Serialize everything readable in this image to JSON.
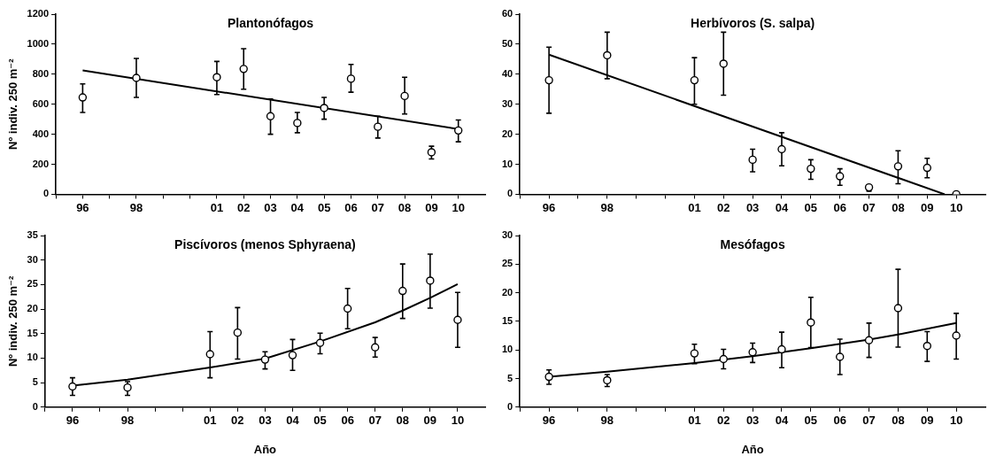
{
  "chart_data": [
    {
      "type": "scatter",
      "title": "Plantonófagos",
      "ylabel": "Nº indiv. 250 m⁻²",
      "marker": "circle",
      "grid": false,
      "legend": false,
      "x": [
        1996,
        1998,
        2001,
        2002,
        2003,
        2004,
        2005,
        2006,
        2007,
        2008,
        2009,
        2010
      ],
      "xlim": [
        1995,
        2011
      ],
      "xticks": [
        {
          "value": 1995,
          "label": null
        },
        {
          "value": 1996,
          "label": "96"
        },
        {
          "value": 1997,
          "label": null
        },
        {
          "value": 1998,
          "label": "98"
        },
        {
          "value": 1999,
          "label": null
        },
        {
          "value": 2000,
          "label": null
        },
        {
          "value": 2001,
          "label": "01"
        },
        {
          "value": 2002,
          "label": "02"
        },
        {
          "value": 2003,
          "label": "03"
        },
        {
          "value": 2004,
          "label": "04"
        },
        {
          "value": 2005,
          "label": "05"
        },
        {
          "value": 2006,
          "label": "06"
        },
        {
          "value": 2007,
          "label": "07"
        },
        {
          "value": 2008,
          "label": "08"
        },
        {
          "value": 2009,
          "label": "09"
        },
        {
          "value": 2010,
          "label": "10"
        }
      ],
      "ylim": [
        0,
        1200
      ],
      "yticks": [
        0,
        200,
        400,
        600,
        800,
        1000,
        1200
      ],
      "series": [
        {
          "color": "#000000",
          "values": [
            645,
            775,
            780,
            835,
            520,
            475,
            575,
            770,
            450,
            655,
            280,
            425
          ],
          "errors": [
            [
              545,
              735
            ],
            [
              645,
              905
            ],
            [
              665,
              885
            ],
            [
              700,
              970
            ],
            [
              400,
              635
            ],
            [
              410,
              545
            ],
            [
              500,
              645
            ],
            [
              680,
              865
            ],
            [
              375,
              520
            ],
            [
              535,
              780
            ],
            [
              235,
              320
            ],
            [
              350,
              495
            ]
          ]
        },
        {
          "type": "line",
          "color": "#000000",
          "marker": "none",
          "x": [
            1996,
            2010
          ],
          "values": [
            825,
            435
          ]
        }
      ]
    },
    {
      "type": "scatter",
      "title": "Herbívoros (S. salpa)",
      "marker": "circle",
      "grid": false,
      "legend": false,
      "x": [
        1996,
        1998,
        2001,
        2002,
        2003,
        2004,
        2005,
        2006,
        2007,
        2008,
        2009,
        2010
      ],
      "xlim": [
        1995,
        2011
      ],
      "xticks": [
        {
          "value": 1995,
          "label": null
        },
        {
          "value": 1996,
          "label": "96"
        },
        {
          "value": 1997,
          "label": null
        },
        {
          "value": 1998,
          "label": "98"
        },
        {
          "value": 1999,
          "label": null
        },
        {
          "value": 2000,
          "label": null
        },
        {
          "value": 2001,
          "label": "01"
        },
        {
          "value": 2002,
          "label": "02"
        },
        {
          "value": 2003,
          "label": "03"
        },
        {
          "value": 2004,
          "label": "04"
        },
        {
          "value": 2005,
          "label": "05"
        },
        {
          "value": 2006,
          "label": "06"
        },
        {
          "value": 2007,
          "label": "07"
        },
        {
          "value": 2008,
          "label": "08"
        },
        {
          "value": 2009,
          "label": "09"
        },
        {
          "value": 2010,
          "label": "10"
        }
      ],
      "ylim": [
        0,
        60
      ],
      "yticks": [
        0,
        10,
        20,
        30,
        40,
        50,
        60
      ],
      "series": [
        {
          "color": "#000000",
          "values": [
            38,
            46.3,
            38,
            43.5,
            11.5,
            15,
            8.5,
            6,
            2.3,
            9.3,
            8.8,
            0
          ],
          "errors": [
            [
              27,
              49
            ],
            [
              38.5,
              54
            ],
            [
              30,
              45.5
            ],
            [
              33,
              54
            ],
            [
              7.5,
              15
            ],
            [
              9.5,
              20.5
            ],
            [
              5,
              11.5
            ],
            [
              3,
              8.5
            ],
            [
              1,
              3
            ],
            [
              3.5,
              14.5
            ],
            [
              5.5,
              12
            ],
            null
          ]
        },
        {
          "type": "line",
          "color": "#000000",
          "marker": "none",
          "x": [
            1996,
            2009.6
          ],
          "values": [
            46.5,
            0
          ]
        }
      ]
    },
    {
      "type": "scatter",
      "title": "Piscívoros (menos Sphyraena)",
      "ylabel": "Nº indiv. 250 m⁻²",
      "xlabel": "Año",
      "marker": "circle",
      "grid": false,
      "legend": false,
      "x": [
        1996,
        1998,
        2001,
        2002,
        2003,
        2004,
        2005,
        2006,
        2007,
        2008,
        2009,
        2010
      ],
      "xlim": [
        1995,
        2011
      ],
      "xticks": [
        {
          "value": 1995,
          "label": null
        },
        {
          "value": 1996,
          "label": "96"
        },
        {
          "value": 1997,
          "label": null
        },
        {
          "value": 1998,
          "label": "98"
        },
        {
          "value": 1999,
          "label": null
        },
        {
          "value": 2000,
          "label": null
        },
        {
          "value": 2001,
          "label": "01"
        },
        {
          "value": 2002,
          "label": "02"
        },
        {
          "value": 2003,
          "label": "03"
        },
        {
          "value": 2004,
          "label": "04"
        },
        {
          "value": 2005,
          "label": "05"
        },
        {
          "value": 2006,
          "label": "06"
        },
        {
          "value": 2007,
          "label": "07"
        },
        {
          "value": 2008,
          "label": "08"
        },
        {
          "value": 2009,
          "label": "09"
        },
        {
          "value": 2010,
          "label": "10"
        }
      ],
      "ylim": [
        0,
        35
      ],
      "yticks": [
        0,
        5,
        10,
        15,
        20,
        25,
        30,
        35
      ],
      "series": [
        {
          "color": "#000000",
          "values": [
            4.2,
            4,
            10.8,
            15.2,
            9.7,
            10.6,
            13.1,
            20.1,
            12.2,
            23.7,
            25.8,
            17.8
          ],
          "errors": [
            [
              2.4,
              6
            ],
            [
              2.4,
              5.2
            ],
            [
              6,
              15.4
            ],
            [
              9.8,
              20.3
            ],
            [
              7.8,
              11.3
            ],
            [
              7.5,
              13.8
            ],
            [
              10.9,
              15.1
            ],
            [
              16,
              24.2
            ],
            [
              10.2,
              14.2
            ],
            [
              18.1,
              29.2
            ],
            [
              20.2,
              31.2
            ],
            [
              12.2,
              23.4
            ]
          ]
        },
        {
          "type": "line",
          "color": "#000000",
          "marker": "none",
          "x": [
            1996,
            1998,
            2001,
            2003,
            2005,
            2007,
            2008,
            2009,
            2010
          ],
          "values": [
            4.4,
            5.6,
            8.1,
            9.9,
            13.4,
            17.3,
            19.7,
            22.3,
            25.1
          ]
        }
      ]
    },
    {
      "type": "scatter",
      "title": "Mesófagos",
      "xlabel": "Año",
      "marker": "circle",
      "grid": false,
      "legend": false,
      "x": [
        1996,
        1998,
        2001,
        2002,
        2003,
        2004,
        2005,
        2006,
        2007,
        2008,
        2009,
        2010
      ],
      "xlim": [
        1995,
        2011
      ],
      "xticks": [
        {
          "value": 1995,
          "label": null
        },
        {
          "value": 1996,
          "label": "96"
        },
        {
          "value": 1997,
          "label": null
        },
        {
          "value": 1998,
          "label": "98"
        },
        {
          "value": 1999,
          "label": null
        },
        {
          "value": 2000,
          "label": null
        },
        {
          "value": 2001,
          "label": "01"
        },
        {
          "value": 2002,
          "label": "02"
        },
        {
          "value": 2003,
          "label": "03"
        },
        {
          "value": 2004,
          "label": "04"
        },
        {
          "value": 2005,
          "label": "05"
        },
        {
          "value": 2006,
          "label": "06"
        },
        {
          "value": 2007,
          "label": "07"
        },
        {
          "value": 2008,
          "label": "08"
        },
        {
          "value": 2009,
          "label": "09"
        },
        {
          "value": 2010,
          "label": "10"
        }
      ],
      "ylim": [
        0,
        30
      ],
      "yticks": [
        0,
        5,
        10,
        15,
        20,
        25,
        30
      ],
      "series": [
        {
          "color": "#000000",
          "values": [
            5.3,
            4.7,
            9.4,
            8.4,
            9.6,
            10.1,
            14.8,
            8.8,
            11.7,
            17.3,
            10.7,
            12.5
          ],
          "errors": [
            [
              4,
              6.5
            ],
            [
              3.6,
              5.7
            ],
            [
              7.6,
              11
            ],
            [
              6.7,
              10.1
            ],
            [
              7.8,
              11.2
            ],
            [
              6.9,
              13.1
            ],
            [
              10.4,
              19.2
            ],
            [
              5.7,
              11.9
            ],
            [
              8.7,
              14.7
            ],
            [
              10.5,
              24.1
            ],
            [
              8,
              13.2
            ],
            [
              8.4,
              16.4
            ]
          ]
        },
        {
          "type": "line",
          "color": "#000000",
          "marker": "none",
          "x": [
            1996,
            1998,
            2001,
            2003,
            2005,
            2007,
            2008,
            2010
          ],
          "values": [
            5.3,
            6.2,
            7.7,
            8.9,
            10.3,
            11.8,
            12.7,
            14.7
          ]
        }
      ]
    }
  ]
}
